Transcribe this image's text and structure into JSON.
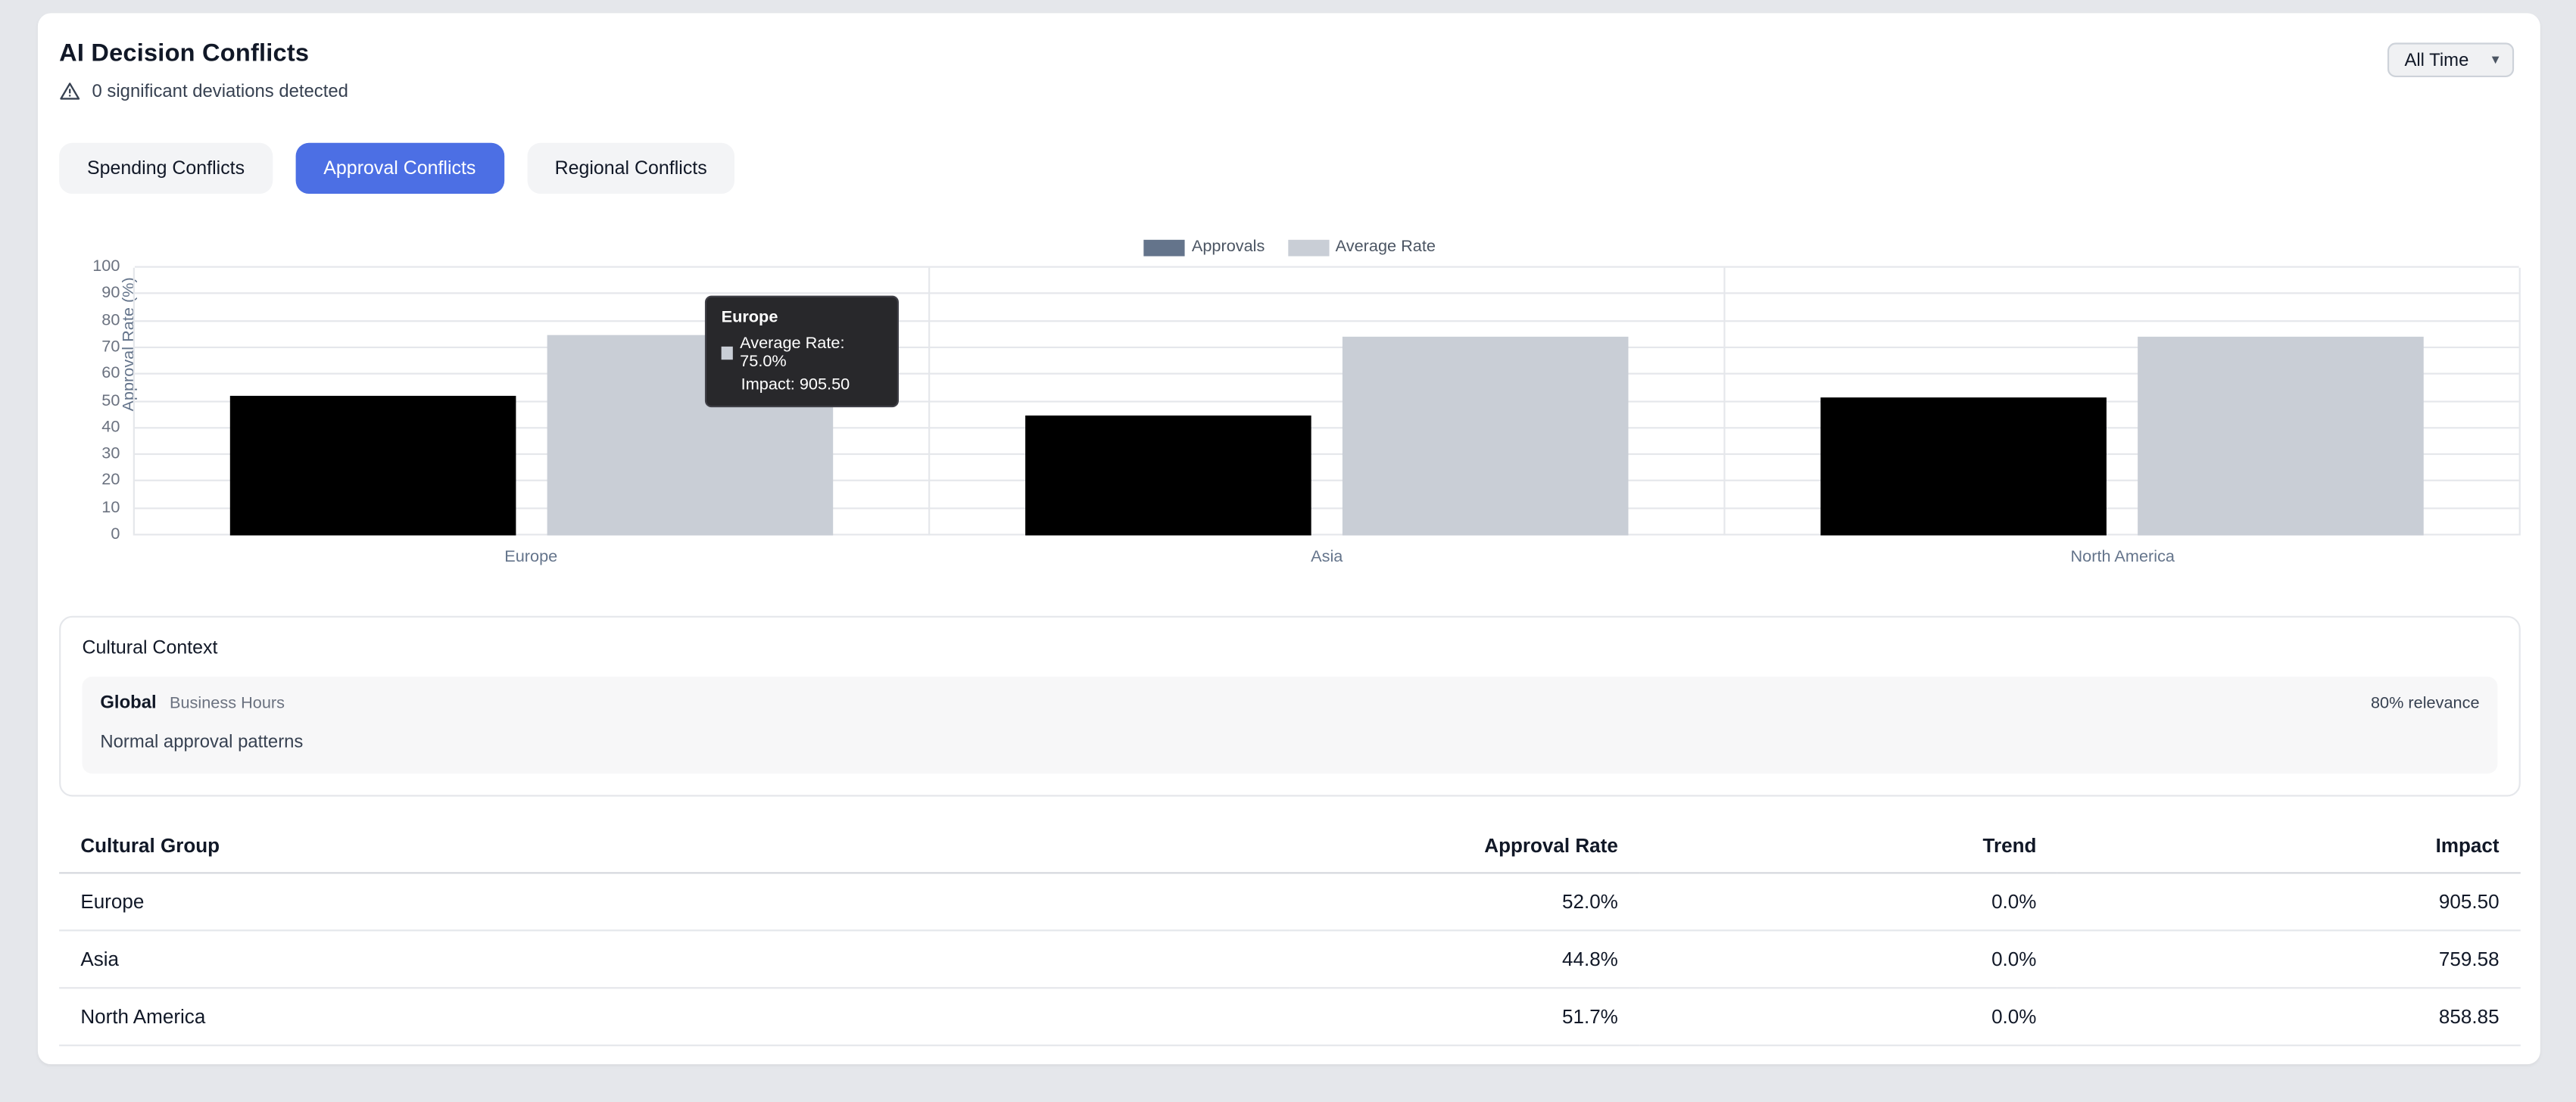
{
  "page": {
    "title": "AI Decision Conflicts",
    "subtitle": "0 significant deviations detected",
    "time_filter": "All Time"
  },
  "tabs": [
    {
      "label": "Spending Conflicts",
      "active": false
    },
    {
      "label": "Approval Conflicts",
      "active": true
    },
    {
      "label": "Regional Conflicts",
      "active": false
    }
  ],
  "chart_data": {
    "type": "bar",
    "categories": [
      "Europe",
      "Asia",
      "North America"
    ],
    "series": [
      {
        "name": "Approvals",
        "color": "#000000",
        "legend_color": "#64748b",
        "values": [
          52.0,
          44.8,
          51.7
        ]
      },
      {
        "name": "Average Rate",
        "color": "#c9ced6",
        "legend_color": "#c9ced6",
        "values": [
          75.0,
          74.3,
          74.3
        ]
      }
    ],
    "title": "",
    "xlabel": "",
    "ylabel": "Approval Rate (%)",
    "ylim": [
      0,
      100
    ],
    "yticks": [
      0,
      10,
      20,
      30,
      40,
      50,
      60,
      70,
      80,
      90,
      100
    ],
    "grid": true,
    "legend_position": "top",
    "tooltip": {
      "title": "Europe",
      "line1": "Average Rate: 75.0%",
      "line2": "Impact: 905.50"
    }
  },
  "cultural_context": {
    "title": "Cultural Context",
    "items": [
      {
        "group": "Global",
        "tag": "Business Hours",
        "relevance": "80% relevance",
        "description": "Normal approval patterns"
      }
    ]
  },
  "table": {
    "columns": [
      "Cultural Group",
      "Approval Rate",
      "Trend",
      "Impact"
    ],
    "rows": [
      {
        "group": "Europe",
        "approval_rate": "52.0%",
        "trend": "0.0%",
        "impact": "905.50"
      },
      {
        "group": "Asia",
        "approval_rate": "44.8%",
        "trend": "0.0%",
        "impact": "759.58"
      },
      {
        "group": "North America",
        "approval_rate": "51.7%",
        "trend": "0.0%",
        "impact": "858.85"
      }
    ]
  }
}
